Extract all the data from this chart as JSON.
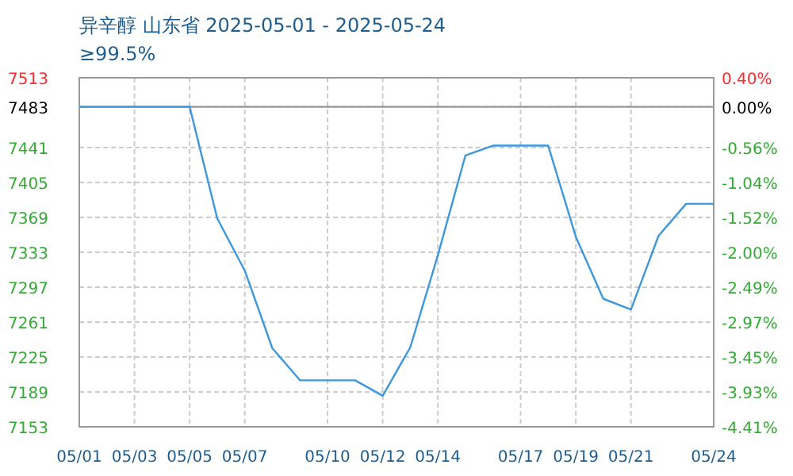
{
  "chart_data": {
    "type": "line",
    "title": "异辛醇 山东省 2025-05-01 - 2025-05-24",
    "subtitle": "≥99.5%",
    "categories": [
      "05/01",
      null,
      "05/03",
      null,
      "05/05",
      null,
      "05/07",
      null,
      null,
      "05/10",
      null,
      "05/12",
      null,
      "05/14",
      null,
      null,
      "05/17",
      null,
      "05/19",
      null,
      "05/21",
      null,
      null,
      "05/24"
    ],
    "series": [
      {
        "color": "#3d97dc",
        "values": [
          7483,
          7483,
          7483,
          7483,
          7483,
          7368,
          7314,
          7234,
          7201,
          7201,
          7201,
          7185,
          7235,
          7330,
          7433,
          7443,
          7443,
          7443,
          7349,
          7285,
          7274,
          7350,
          7383,
          7383
        ]
      }
    ],
    "ylim": [
      7153,
      7513
    ],
    "yticks": [
      7153,
      7189,
      7225,
      7261,
      7297,
      7333,
      7369,
      7405,
      7441,
      7483,
      7513
    ],
    "y2lim": [
      -4.41,
      0.4
    ],
    "y2ticks": [
      {
        "value": -4.41,
        "label": "-4.41%"
      },
      {
        "value": -3.93,
        "label": "-3.93%"
      },
      {
        "value": -3.45,
        "label": "-3.45%"
      },
      {
        "value": -2.97,
        "label": "-2.97%"
      },
      {
        "value": -2.49,
        "label": "-2.49%"
      },
      {
        "value": -2.0,
        "label": "-2.00%"
      },
      {
        "value": -1.52,
        "label": "-1.52%"
      },
      {
        "value": -1.04,
        "label": "-1.04%"
      },
      {
        "value": -0.56,
        "label": "-0.56%"
      },
      {
        "value": 0.0,
        "label": "0.00%"
      },
      {
        "value": 0.4,
        "label": "0.40%"
      }
    ],
    "ref_lines": [
      {
        "axis": "y",
        "value": 7483,
        "color": "#999999"
      }
    ],
    "grid": true,
    "marker": "none",
    "line_style": "solid"
  }
}
